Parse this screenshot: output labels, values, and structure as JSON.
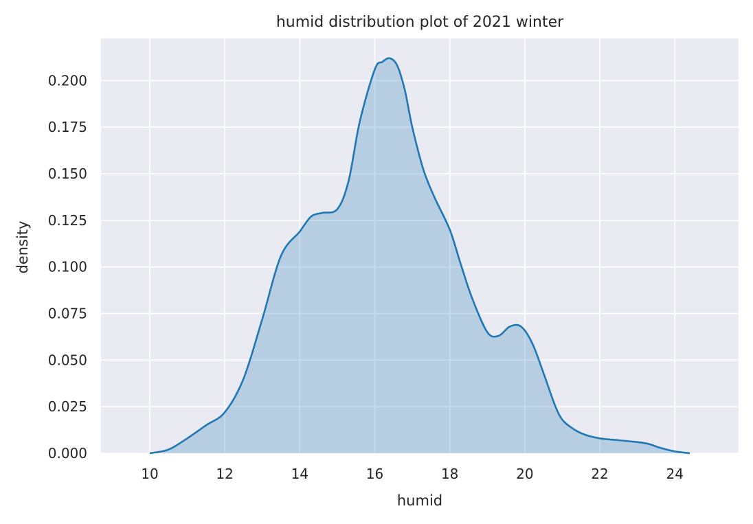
{
  "chart_data": {
    "type": "area",
    "title": "humid distribution plot of 2021 winter",
    "xlabel": "humid",
    "ylabel": "density",
    "xlim": [
      8.7,
      25.7
    ],
    "ylim": [
      0,
      0.2226
    ],
    "xticks": [
      10,
      12,
      14,
      16,
      18,
      20,
      22,
      24
    ],
    "xtick_labels": [
      "10",
      "12",
      "14",
      "16",
      "18",
      "20",
      "22",
      "24"
    ],
    "yticks": [
      0.0,
      0.025,
      0.05,
      0.075,
      0.1,
      0.125,
      0.15,
      0.175,
      0.2
    ],
    "ytick_labels": [
      "0.000",
      "0.025",
      "0.050",
      "0.075",
      "0.100",
      "0.125",
      "0.150",
      "0.175",
      "0.200"
    ],
    "grid": true,
    "colors": {
      "line": "#1f77b4",
      "fill": "#1f77b4",
      "background": "#eaeaf2",
      "grid": "#ffffff"
    },
    "series": [
      {
        "x": [
          10.0,
          10.5,
          11.0,
          11.5,
          12.0,
          12.5,
          13.0,
          13.5,
          14.0,
          14.3,
          14.6,
          15.0,
          15.3,
          15.6,
          16.0,
          16.2,
          16.4,
          16.6,
          16.8,
          17.0,
          17.3,
          17.6,
          18.0,
          18.3,
          18.6,
          19.0,
          19.3,
          19.6,
          19.9,
          20.2,
          20.5,
          20.8,
          21.0,
          21.3,
          21.6,
          22.0,
          22.5,
          23.0,
          23.3,
          23.6,
          24.0,
          24.4
        ],
        "y": [
          0.0,
          0.002,
          0.008,
          0.015,
          0.022,
          0.04,
          0.072,
          0.106,
          0.119,
          0.127,
          0.129,
          0.131,
          0.146,
          0.178,
          0.206,
          0.21,
          0.212,
          0.208,
          0.195,
          0.175,
          0.152,
          0.137,
          0.12,
          0.101,
          0.083,
          0.065,
          0.063,
          0.068,
          0.068,
          0.059,
          0.043,
          0.026,
          0.018,
          0.013,
          0.01,
          0.008,
          0.007,
          0.006,
          0.005,
          0.003,
          0.001,
          0.0
        ]
      }
    ]
  }
}
